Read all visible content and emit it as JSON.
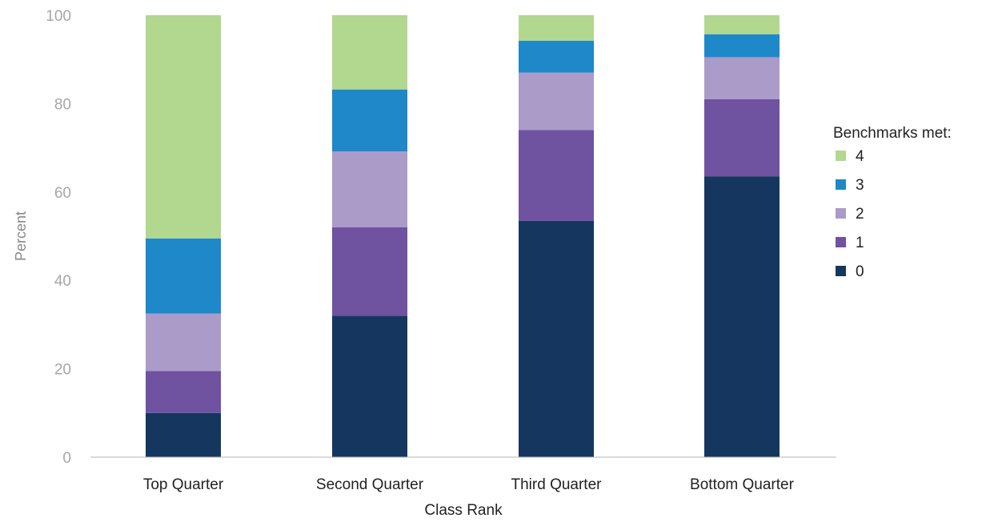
{
  "chart_data": {
    "type": "bar",
    "stacked": true,
    "categories": [
      "Top Quarter",
      "Second Quarter",
      "Third Quarter",
      "Bottom Quarter"
    ],
    "series": [
      {
        "name": "0",
        "color": "#15375f",
        "values": [
          10.0,
          32.0,
          53.5,
          63.5
        ]
      },
      {
        "name": "1",
        "color": "#6f52a0",
        "values": [
          9.5,
          20.0,
          20.5,
          17.5
        ]
      },
      {
        "name": "2",
        "color": "#aa9bc9",
        "values": [
          13.0,
          17.2,
          13.0,
          9.5
        ]
      },
      {
        "name": "3",
        "color": "#1e88c9",
        "values": [
          17.0,
          14.0,
          7.2,
          5.2
        ]
      },
      {
        "name": "4",
        "color": "#b2d78f",
        "values": [
          50.5,
          16.8,
          5.8,
          4.3
        ]
      }
    ],
    "xlabel": "Class Rank",
    "ylabel": "Percent",
    "ylim": [
      0,
      100
    ],
    "yticks": [
      0,
      20,
      40,
      60,
      80,
      100
    ],
    "grid": false,
    "legend": {
      "title": "Benchmarks met:",
      "position": "right",
      "order": [
        "4",
        "3",
        "2",
        "1",
        "0"
      ]
    }
  }
}
